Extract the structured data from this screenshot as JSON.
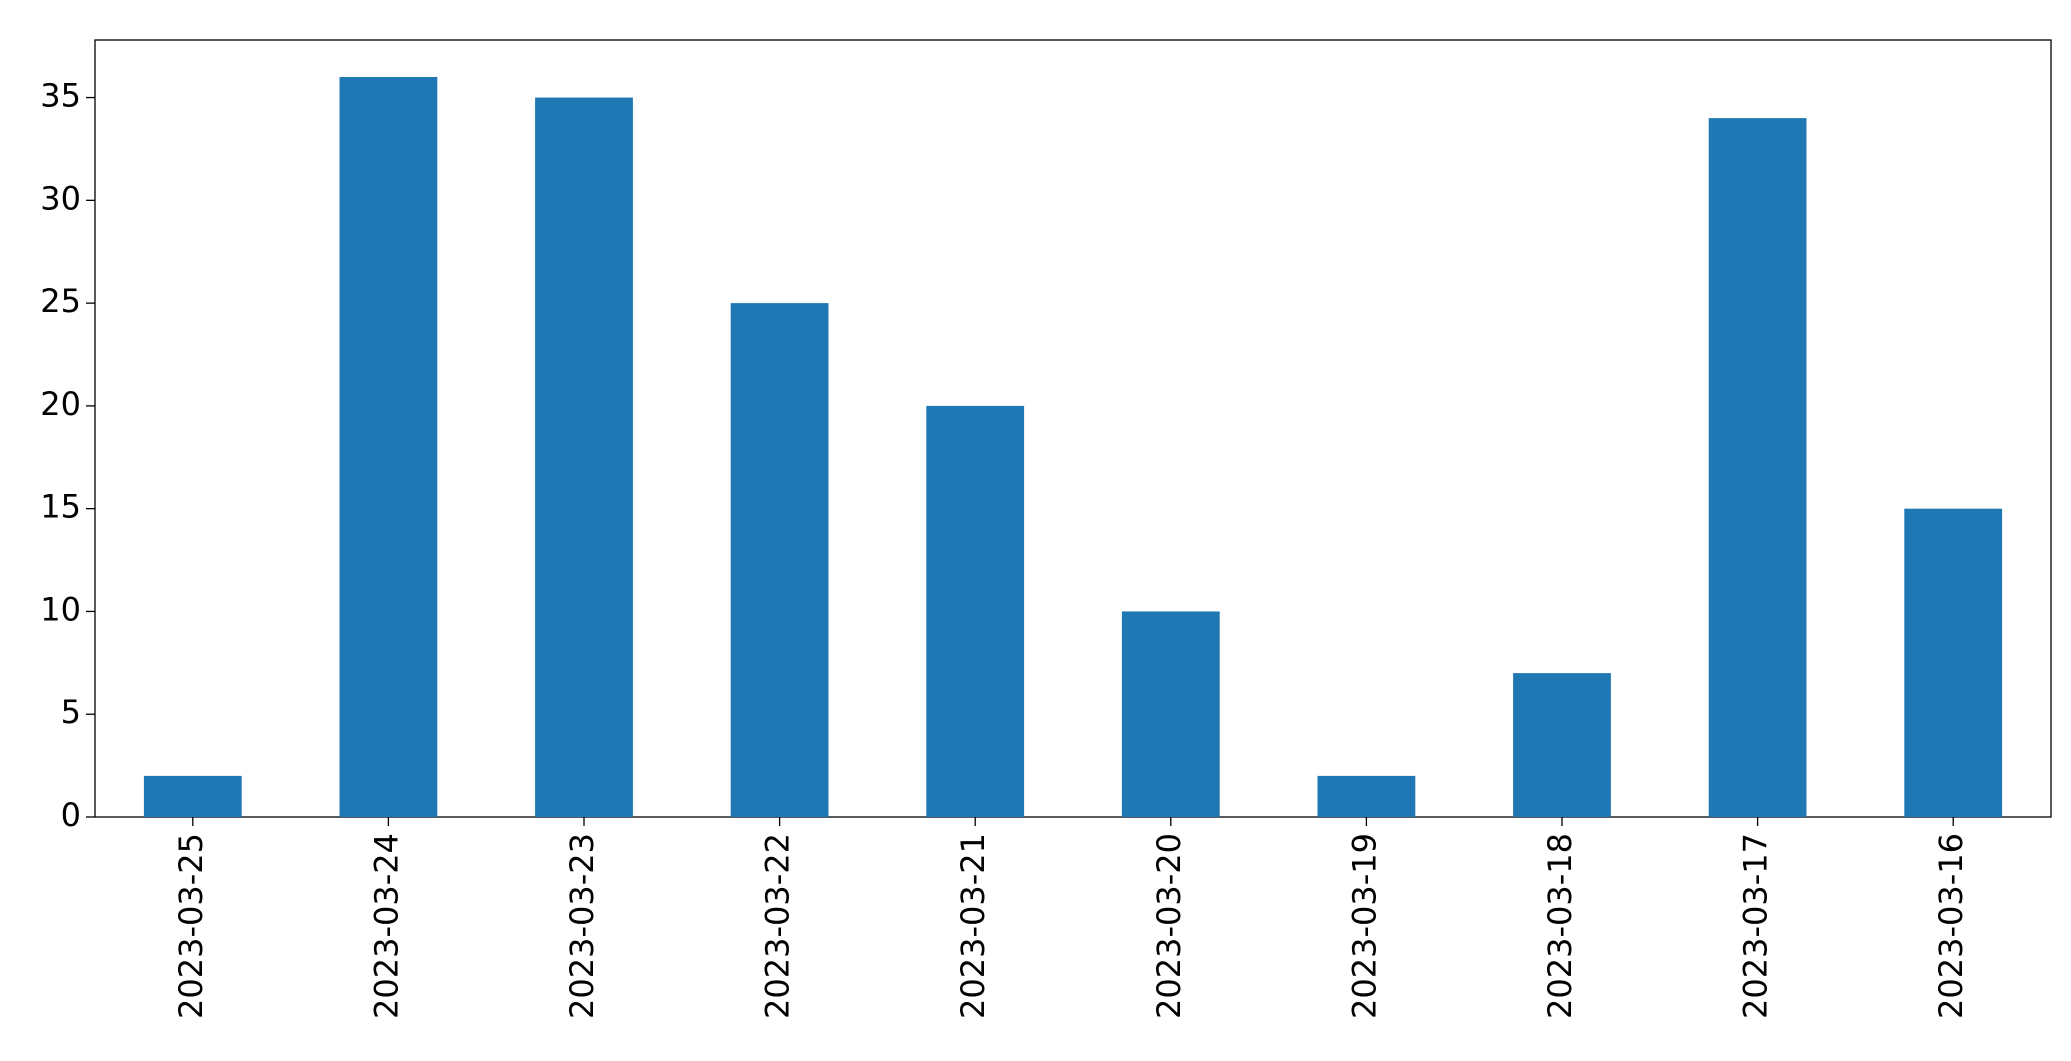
{
  "chart_data": {
    "type": "bar",
    "categories": [
      "2023-03-25",
      "2023-03-24",
      "2023-03-23",
      "2023-03-22",
      "2023-03-21",
      "2023-03-20",
      "2023-03-19",
      "2023-03-18",
      "2023-03-17",
      "2023-03-16"
    ],
    "values": [
      2,
      36,
      35,
      25,
      20,
      10,
      2,
      7,
      34,
      15
    ],
    "color": "#1f77b4",
    "ylim": [
      0,
      37.8
    ],
    "yticks": [
      0,
      5,
      10,
      15,
      20,
      25,
      30,
      35
    ],
    "grid": false
  }
}
